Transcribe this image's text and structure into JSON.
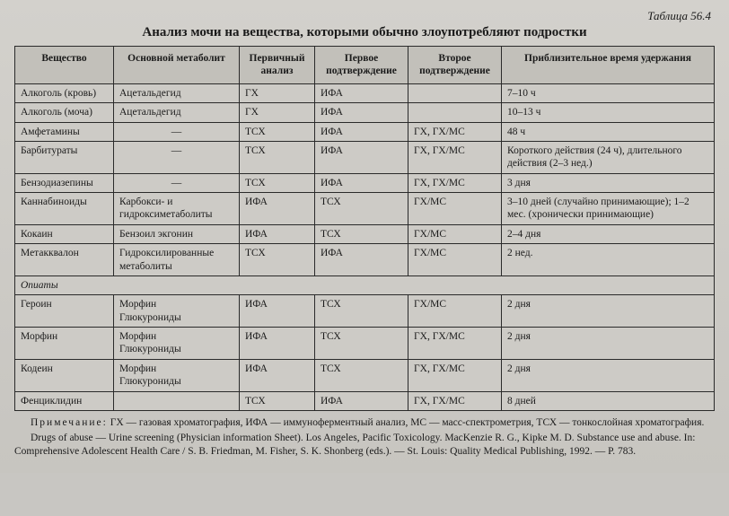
{
  "table_label": "Таблица 56.4",
  "title": "Анализ мочи на вещества, которыми обычно злоупотребляют подростки",
  "columns": [
    "Вещество",
    "Основной метаболит",
    "Первичный анализ",
    "Первое подтверждение",
    "Второе подтверждение",
    "Приблизительное время удержания"
  ],
  "rows": [
    {
      "c": [
        "Алкоголь (кровь)",
        "Ацетальдегид",
        "ГХ",
        "ИФА",
        "",
        "7–10 ч"
      ]
    },
    {
      "c": [
        "Алкоголь (моча)",
        "Ацетальдегид",
        "ГХ",
        "ИФА",
        "",
        "10–13 ч"
      ]
    },
    {
      "c": [
        "Амфетамины",
        "—",
        "ТСХ",
        "ИФА",
        "ГХ, ГХ/МС",
        "48 ч"
      ]
    },
    {
      "c": [
        "Барбитураты",
        "—",
        "ТСХ",
        "ИФА",
        "ГХ, ГХ/МС",
        "Короткого действия (24 ч), длительного действия (2–3 нед.)"
      ]
    },
    {
      "c": [
        "Бензодиазепины",
        "—",
        "ТСХ",
        "ИФА",
        "ГХ, ГХ/МС",
        "3 дня"
      ]
    },
    {
      "c": [
        "Каннабиноиды",
        "Карбокси- и гидроксиметаболиты",
        "ИФА",
        "ТСХ",
        "ГХ/МС",
        "3–10 дней (случайно принимающие); 1–2 мес. (хронически принимающие)"
      ]
    },
    {
      "c": [
        "Кокаин",
        "Бензоил экгонин",
        "ИФА",
        "ТСХ",
        "ГХ/МС",
        "2–4 дня"
      ]
    },
    {
      "c": [
        "Метакквалон",
        "Гидроксилированные метаболиты",
        "ТСХ",
        "ИФА",
        "ГХ/МС",
        "2 нед."
      ]
    },
    {
      "section": "Опиаты"
    },
    {
      "c": [
        "Героин",
        "Морфин\nГлюкурониды",
        "ИФА",
        "ТСХ",
        "ГХ/МС",
        "2 дня"
      ],
      "indent": true
    },
    {
      "c": [
        "Морфин",
        "Морфин\nГлюкурониды",
        "ИФА",
        "ТСХ",
        "ГХ, ГХ/МС",
        "2 дня"
      ],
      "indent": true
    },
    {
      "c": [
        "Кодеин",
        "Морфин\nГлюкурониды",
        "ИФА",
        "ТСХ",
        "ГХ, ГХ/МС",
        "2 дня"
      ],
      "indent": true
    },
    {
      "c": [
        "Фенциклидин",
        "",
        "ТСХ",
        "ИФА",
        "ГХ, ГХ/МС",
        "8 дней"
      ]
    }
  ],
  "note_label": "Примечание:",
  "note_text": " ГХ — газовая хроматография, ИФА — иммуноферментный анализ, МС — масс-спектрометрия, ТСХ — тонкослойная хроматография.",
  "citation": "Drugs of abuse — Urine screening (Physician information Sheet). Los Angeles, Pacific Toxicology. MacKenzie R. G., Kipke M. D. Substance use and abuse. In: Comprehensive Adolescent Health Care / S. B. Friedman, M. Fisher, S. K. Shonberg (eds.). — St. Louis: Quality Medical Publishing, 1992. — P. 783.",
  "colors": {
    "page_bg": "#d0cec9",
    "header_bg": "#c2c0ba",
    "border": "#2a2a2a",
    "text": "#1a1a1a"
  },
  "fonts": {
    "family": "Times New Roman",
    "title_size_pt": 15,
    "body_size_pt": 11.5
  }
}
